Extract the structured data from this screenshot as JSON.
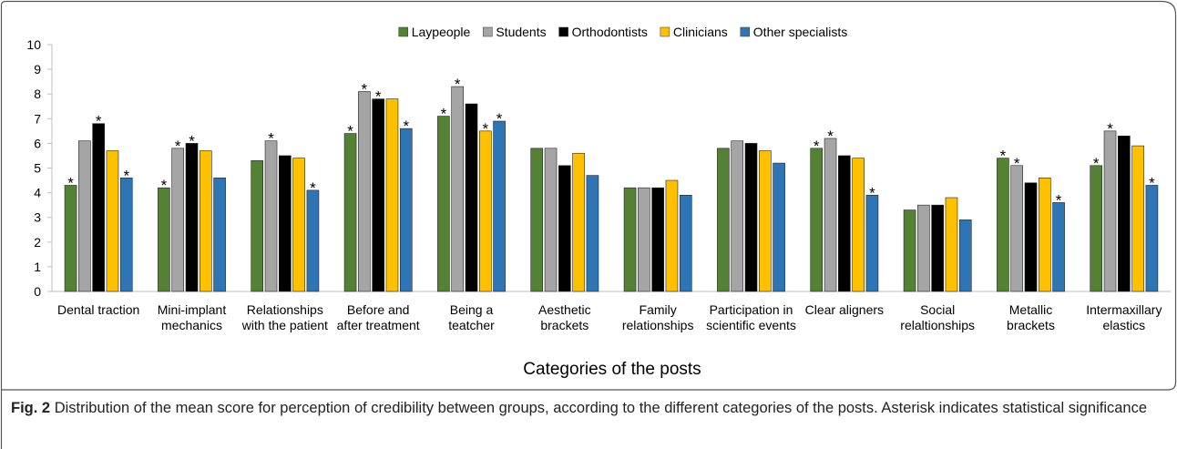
{
  "chart_data": {
    "type": "bar",
    "x_label": "Categories of the posts",
    "categories": [
      "Dental traction",
      "Mini-implant mechanics",
      "Relationships with the patient",
      "Before and after treatment",
      "Being a teatcher",
      "Aesthetic brackets",
      "Family relationships",
      "Participation in scientific events",
      "Clear aligners",
      "Social relaltionships",
      "Metallic brackets",
      "Intermaxillary elastics"
    ],
    "series": [
      {
        "name": "Laypeople",
        "color": "#548235",
        "values": [
          4.3,
          4.2,
          5.3,
          6.4,
          7.1,
          5.8,
          4.2,
          5.8,
          5.8,
          3.3,
          5.4,
          5.1
        ],
        "annotations": [
          "*",
          "*",
          null,
          "*",
          "*",
          null,
          null,
          null,
          "*",
          null,
          "*",
          "*"
        ]
      },
      {
        "name": "Students",
        "color": "#a5a5a5",
        "values": [
          6.1,
          5.8,
          6.1,
          8.1,
          8.3,
          5.8,
          4.2,
          6.1,
          6.2,
          3.5,
          5.1,
          6.5
        ],
        "annotations": [
          null,
          "*",
          "*",
          "*",
          "*",
          null,
          null,
          null,
          "*",
          null,
          "*",
          "*"
        ]
      },
      {
        "name": "Orthodontists",
        "color": "#000000",
        "values": [
          6.8,
          6.0,
          5.5,
          7.8,
          7.6,
          5.1,
          4.2,
          6.0,
          5.5,
          3.5,
          4.4,
          6.3
        ],
        "annotations": [
          "*",
          "*",
          null,
          "*",
          null,
          null,
          null,
          null,
          null,
          null,
          null,
          null
        ]
      },
      {
        "name": "Clinicians",
        "color": "#ffc000",
        "values": [
          5.7,
          5.7,
          5.4,
          7.8,
          6.5,
          5.6,
          4.5,
          5.7,
          5.4,
          3.8,
          4.6,
          5.9
        ],
        "annotations": [
          null,
          null,
          null,
          null,
          "*",
          null,
          null,
          null,
          null,
          null,
          null,
          null
        ]
      },
      {
        "name": "Other specialists",
        "color": "#2e75b6",
        "values": [
          4.6,
          4.6,
          4.1,
          6.6,
          6.9,
          4.7,
          3.9,
          5.2,
          3.9,
          2.9,
          3.6,
          4.3
        ],
        "annotations": [
          "*",
          null,
          "*",
          "*",
          "*",
          null,
          null,
          null,
          "*",
          null,
          "*",
          "*"
        ]
      }
    ],
    "ylim": [
      0,
      10
    ],
    "yticks": [
      0,
      1,
      2,
      3,
      4,
      5,
      6,
      7,
      8,
      9,
      10
    ],
    "grid": false,
    "legend": "top"
  },
  "caption": {
    "label": "Fig. 2",
    "text": "Distribution of the mean score for perception of credibility between groups, according to the different categories of the posts. Asterisk indicates statistical significance"
  }
}
